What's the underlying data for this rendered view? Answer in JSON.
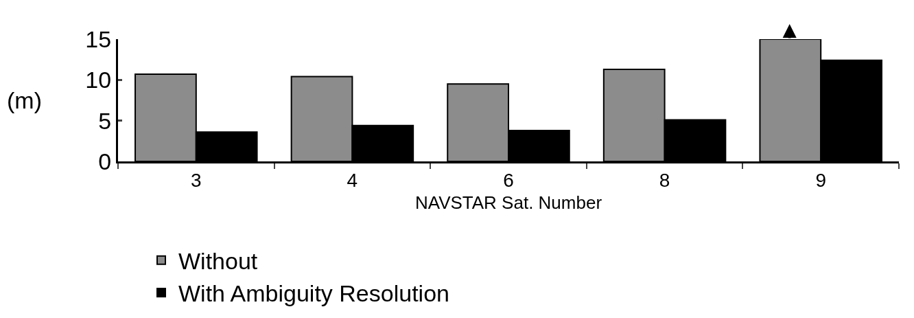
{
  "chart_data": {
    "type": "bar",
    "xlabel": "NAVSTAR Sat. Number",
    "ylabel": "(m)",
    "categories": [
      "3",
      "4",
      "6",
      "8",
      "9"
    ],
    "series": [
      {
        "name": "Without",
        "color": "#8c8c8c",
        "values": [
          10.7,
          10.4,
          9.5,
          11.3,
          15
        ]
      },
      {
        "name": "With Ambiguity Resolution",
        "color": "#000000",
        "values": [
          3.6,
          4.4,
          3.8,
          5.1,
          12.4
        ]
      }
    ],
    "ylim": [
      0,
      15
    ],
    "yticks": [
      0,
      5,
      10,
      15
    ],
    "grid": false,
    "legend": "bottom"
  }
}
